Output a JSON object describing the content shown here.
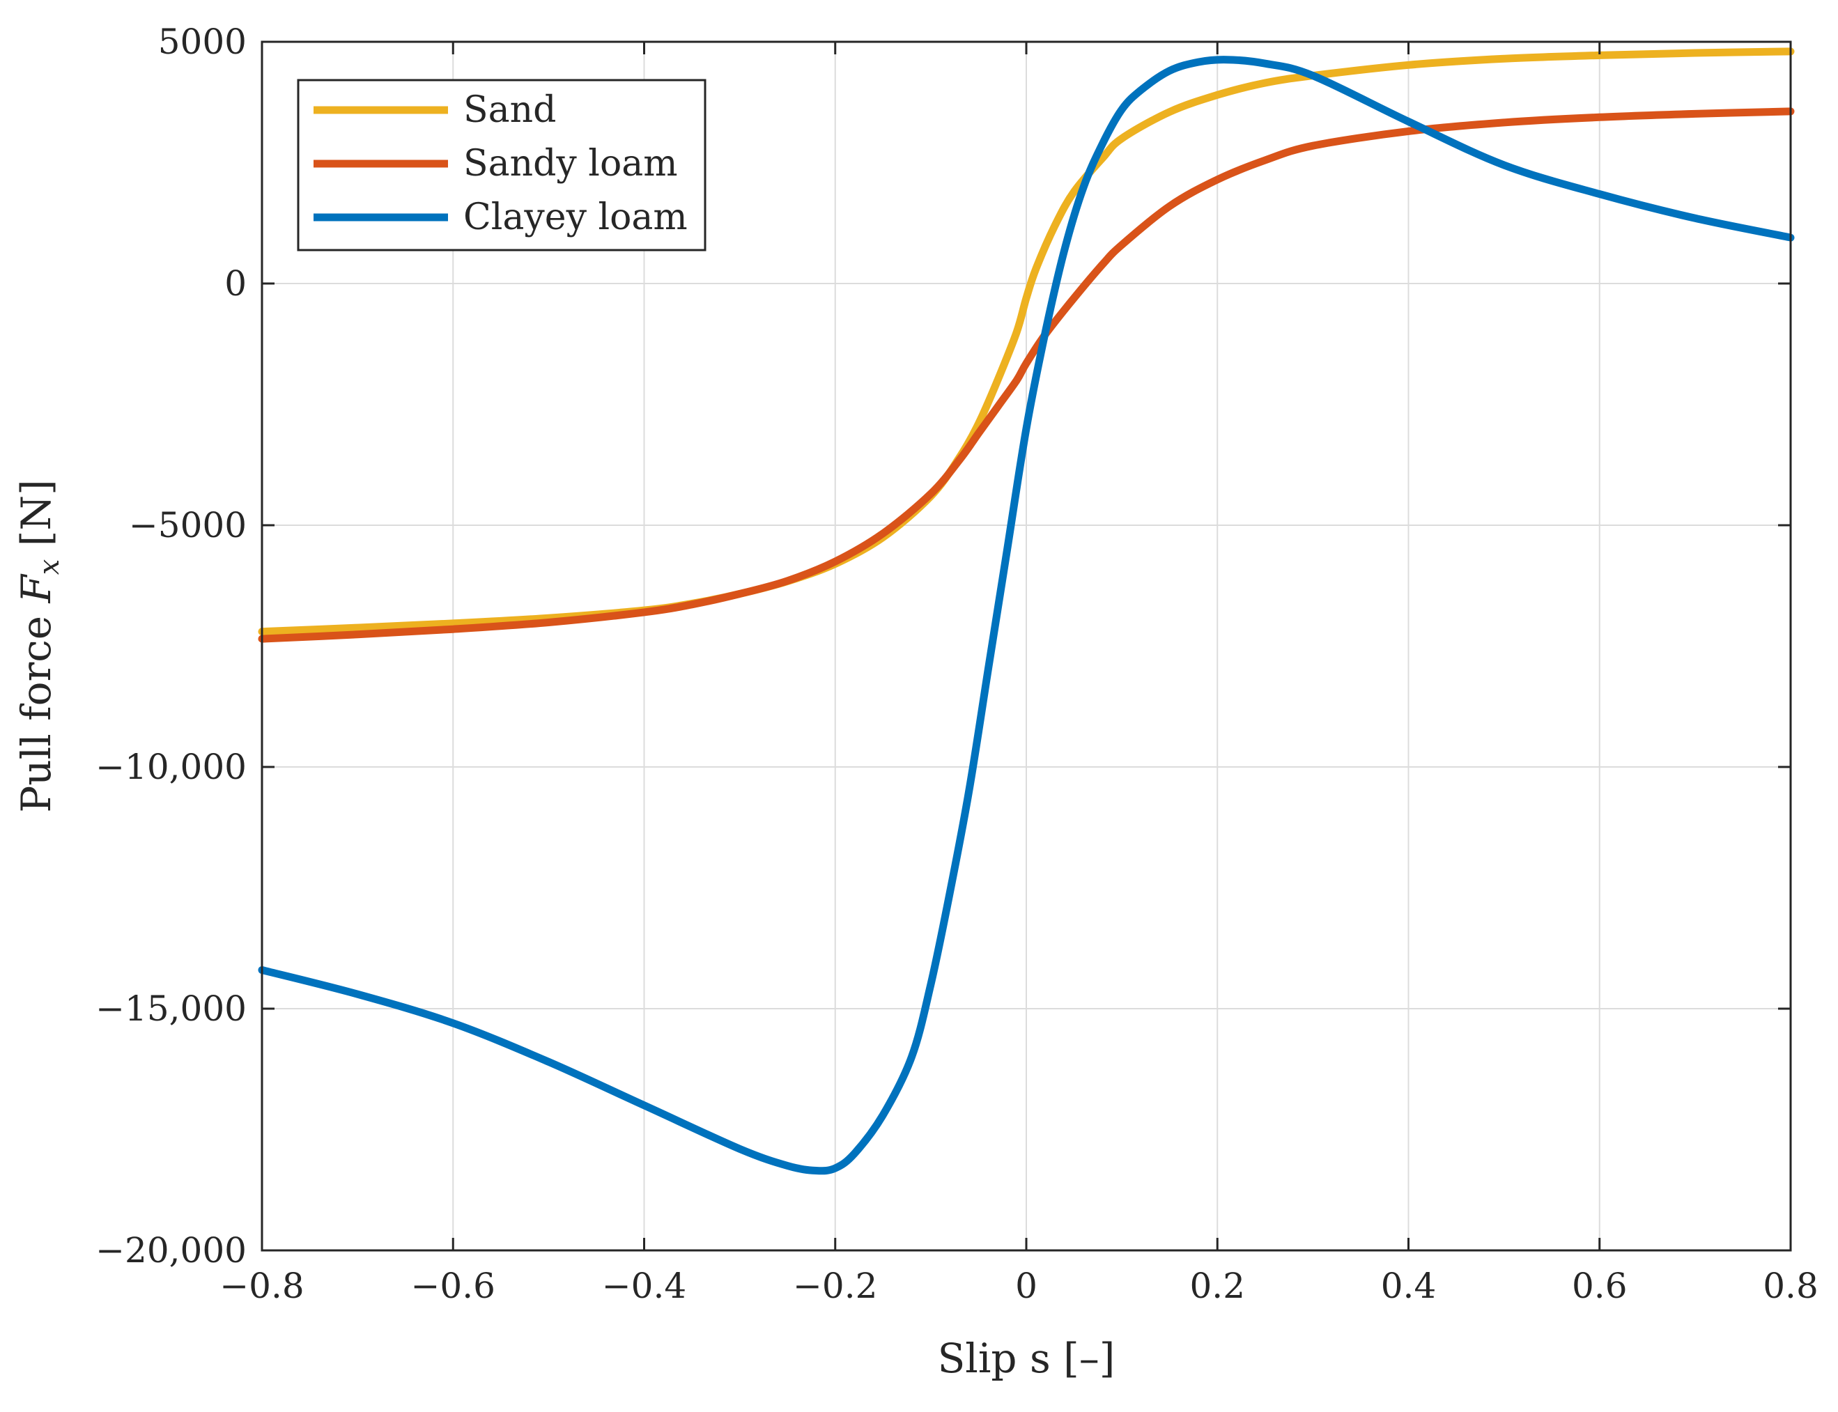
{
  "chart_data": {
    "type": "line",
    "title": "",
    "xlabel": "Slip s [–]",
    "ylabel_prefix": "Pull force ",
    "ylabel_var": "F",
    "ylabel_sub": "x",
    "ylabel_suffix": " [N]",
    "xlim": [
      -0.8,
      0.8
    ],
    "ylim": [
      -20000,
      5000
    ],
    "xticks": [
      -0.8,
      -0.6,
      -0.4,
      -0.2,
      0,
      0.2,
      0.4,
      0.6,
      0.8
    ],
    "xtick_labels": [
      "−0.8",
      "−0.6",
      "−0.4",
      "−0.2",
      "0",
      "0.2",
      "0.4",
      "0.6",
      "0.8"
    ],
    "yticks": [
      5000,
      0,
      -5000,
      -10000,
      -15000,
      -20000
    ],
    "ytick_labels": [
      "5000",
      "0",
      "−5000",
      "−10,000",
      "−15,000",
      "−20,000"
    ],
    "grid": true,
    "legend_position": "top-left",
    "series": [
      {
        "name": "Sand",
        "color": "#EDB120",
        "x": [
          -0.8,
          -0.7,
          -0.6,
          -0.5,
          -0.4,
          -0.35,
          -0.3,
          -0.25,
          -0.2,
          -0.15,
          -0.1,
          -0.07,
          -0.05,
          -0.03,
          -0.01,
          0,
          0.01,
          0.03,
          0.05,
          0.08,
          0.1,
          0.15,
          0.2,
          0.25,
          0.3,
          0.4,
          0.5,
          0.6,
          0.7,
          0.8
        ],
        "y": [
          -7200,
          -7120,
          -7030,
          -6920,
          -6760,
          -6620,
          -6420,
          -6160,
          -5800,
          -5250,
          -4400,
          -3600,
          -2900,
          -2000,
          -1000,
          -300,
          300,
          1200,
          1900,
          2600,
          3000,
          3550,
          3900,
          4150,
          4300,
          4520,
          4650,
          4720,
          4770,
          4800
        ]
      },
      {
        "name": "Sandy loam",
        "color": "#D95319",
        "x": [
          -0.8,
          -0.7,
          -0.6,
          -0.5,
          -0.4,
          -0.35,
          -0.3,
          -0.25,
          -0.2,
          -0.15,
          -0.1,
          -0.07,
          -0.05,
          -0.03,
          -0.01,
          0,
          0.02,
          0.05,
          0.08,
          0.1,
          0.15,
          0.2,
          0.25,
          0.3,
          0.4,
          0.5,
          0.6,
          0.7,
          0.8
        ],
        "y": [
          -7350,
          -7260,
          -7150,
          -7010,
          -6800,
          -6640,
          -6420,
          -6150,
          -5750,
          -5170,
          -4350,
          -3650,
          -3100,
          -2550,
          -2000,
          -1650,
          -1050,
          -300,
          400,
          800,
          1600,
          2150,
          2550,
          2850,
          3150,
          3330,
          3440,
          3510,
          3560
        ]
      },
      {
        "name": "Clayey loam",
        "color": "#0072BD",
        "x": [
          -0.8,
          -0.7,
          -0.6,
          -0.5,
          -0.4,
          -0.3,
          -0.25,
          -0.22,
          -0.2,
          -0.18,
          -0.15,
          -0.12,
          -0.1,
          -0.08,
          -0.06,
          -0.04,
          -0.02,
          0,
          0.02,
          0.04,
          0.06,
          0.08,
          0.1,
          0.12,
          0.15,
          0.18,
          0.21,
          0.25,
          0.3,
          0.4,
          0.5,
          0.6,
          0.7,
          0.8
        ],
        "y": [
          -14200,
          -14700,
          -15300,
          -16100,
          -17000,
          -17900,
          -18250,
          -18350,
          -18300,
          -18000,
          -17200,
          -16000,
          -14500,
          -12600,
          -10500,
          -8000,
          -5500,
          -3000,
          -1000,
          700,
          2000,
          2900,
          3600,
          4000,
          4400,
          4580,
          4630,
          4550,
          4300,
          3350,
          2450,
          1850,
          1350,
          950
        ]
      }
    ]
  }
}
